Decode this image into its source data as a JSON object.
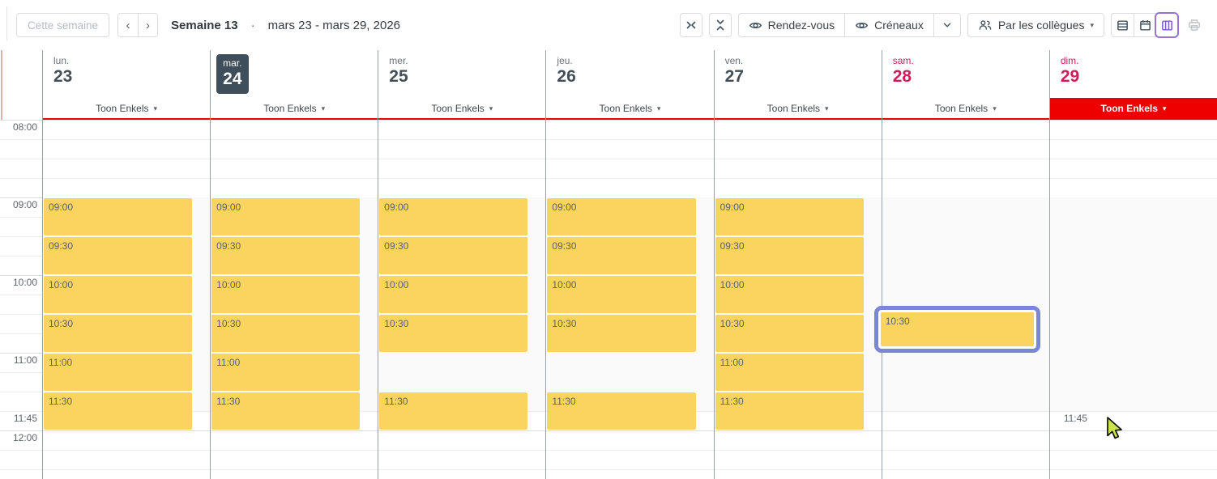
{
  "toolbar": {
    "this_week_button": "Cette semaine",
    "week_title": "Semaine 13",
    "title_separator": "·",
    "date_range": "mars 23 - mars 29, 2026",
    "toggle_appointments": "Rendez-vous",
    "toggle_slots": "Créneaux",
    "by_colleagues_button": "Par les collègues"
  },
  "icons": {
    "chevron_left": "‹",
    "chevron_right": "›",
    "caret_down": "▾",
    "names": [
      "collapse-horizontal-icon",
      "collapse-vertical-icon",
      "eye-icon",
      "chevron-down-icon",
      "people-icon",
      "rows-view-icon",
      "calendar-view-icon",
      "columns-view-icon",
      "printer-icon",
      "cursor-pointer-icon"
    ]
  },
  "calendar": {
    "time_axis": {
      "hour_labels": [
        "08:00",
        "09:00",
        "10:00",
        "11:00",
        "12:00"
      ],
      "hover_time": "11:45"
    },
    "days": [
      {
        "abbr": "lun.",
        "number": "23",
        "is_today": false,
        "is_weekend": false,
        "highlight_resource": false,
        "resource": "Toon Enkels",
        "slots": [
          {
            "time": "09:00",
            "selected": false
          },
          {
            "time": "09:30",
            "selected": false
          },
          {
            "time": "10:00",
            "selected": false
          },
          {
            "time": "10:30",
            "selected": false
          },
          {
            "time": "11:00",
            "selected": false
          },
          {
            "time": "11:30",
            "selected": false
          }
        ]
      },
      {
        "abbr": "mar.",
        "number": "24",
        "is_today": true,
        "is_weekend": false,
        "highlight_resource": false,
        "resource": "Toon Enkels",
        "slots": [
          {
            "time": "09:00",
            "selected": false
          },
          {
            "time": "09:30",
            "selected": false
          },
          {
            "time": "10:00",
            "selected": false
          },
          {
            "time": "10:30",
            "selected": false
          },
          {
            "time": "11:00",
            "selected": false
          },
          {
            "time": "11:30",
            "selected": false
          }
        ]
      },
      {
        "abbr": "mer.",
        "number": "25",
        "is_today": false,
        "is_weekend": false,
        "highlight_resource": false,
        "resource": "Toon Enkels",
        "slots": [
          {
            "time": "09:00",
            "selected": false
          },
          {
            "time": "09:30",
            "selected": false
          },
          {
            "time": "10:00",
            "selected": false
          },
          {
            "time": "10:30",
            "selected": false
          },
          {
            "time": "11:30",
            "selected": false
          }
        ]
      },
      {
        "abbr": "jeu.",
        "number": "26",
        "is_today": false,
        "is_weekend": false,
        "highlight_resource": false,
        "resource": "Toon Enkels",
        "slots": [
          {
            "time": "09:00",
            "selected": false
          },
          {
            "time": "09:30",
            "selected": false
          },
          {
            "time": "10:00",
            "selected": false
          },
          {
            "time": "10:30",
            "selected": false
          },
          {
            "time": "11:30",
            "selected": false
          }
        ]
      },
      {
        "abbr": "ven.",
        "number": "27",
        "is_today": false,
        "is_weekend": false,
        "highlight_resource": false,
        "resource": "Toon Enkels",
        "slots": [
          {
            "time": "09:00",
            "selected": false
          },
          {
            "time": "09:30",
            "selected": false
          },
          {
            "time": "10:00",
            "selected": false
          },
          {
            "time": "10:30",
            "selected": false
          },
          {
            "time": "11:00",
            "selected": false
          },
          {
            "time": "11:30",
            "selected": false
          }
        ]
      },
      {
        "abbr": "sam.",
        "number": "28",
        "is_today": false,
        "is_weekend": true,
        "highlight_resource": false,
        "resource": "Toon Enkels",
        "slots": [
          {
            "time": "10:30",
            "selected": true
          }
        ]
      },
      {
        "abbr": "dim.",
        "number": "29",
        "is_today": false,
        "is_weekend": true,
        "highlight_resource": true,
        "resource": "Toon Enkels",
        "slots": []
      }
    ],
    "hover": {
      "day_index": 6,
      "time": "11:45"
    }
  },
  "colors": {
    "slot_yellow": "#FBD45F",
    "selected_slot_border": "#7B86D8",
    "weekend_text": "#D01B5C",
    "availability_red": "#EE0000",
    "today_badge_bg": "#3E4E5A",
    "active_view_accent": "#9575CD",
    "column_separator": "#9AA0A6",
    "cursor_fill": "#C9E34B"
  }
}
